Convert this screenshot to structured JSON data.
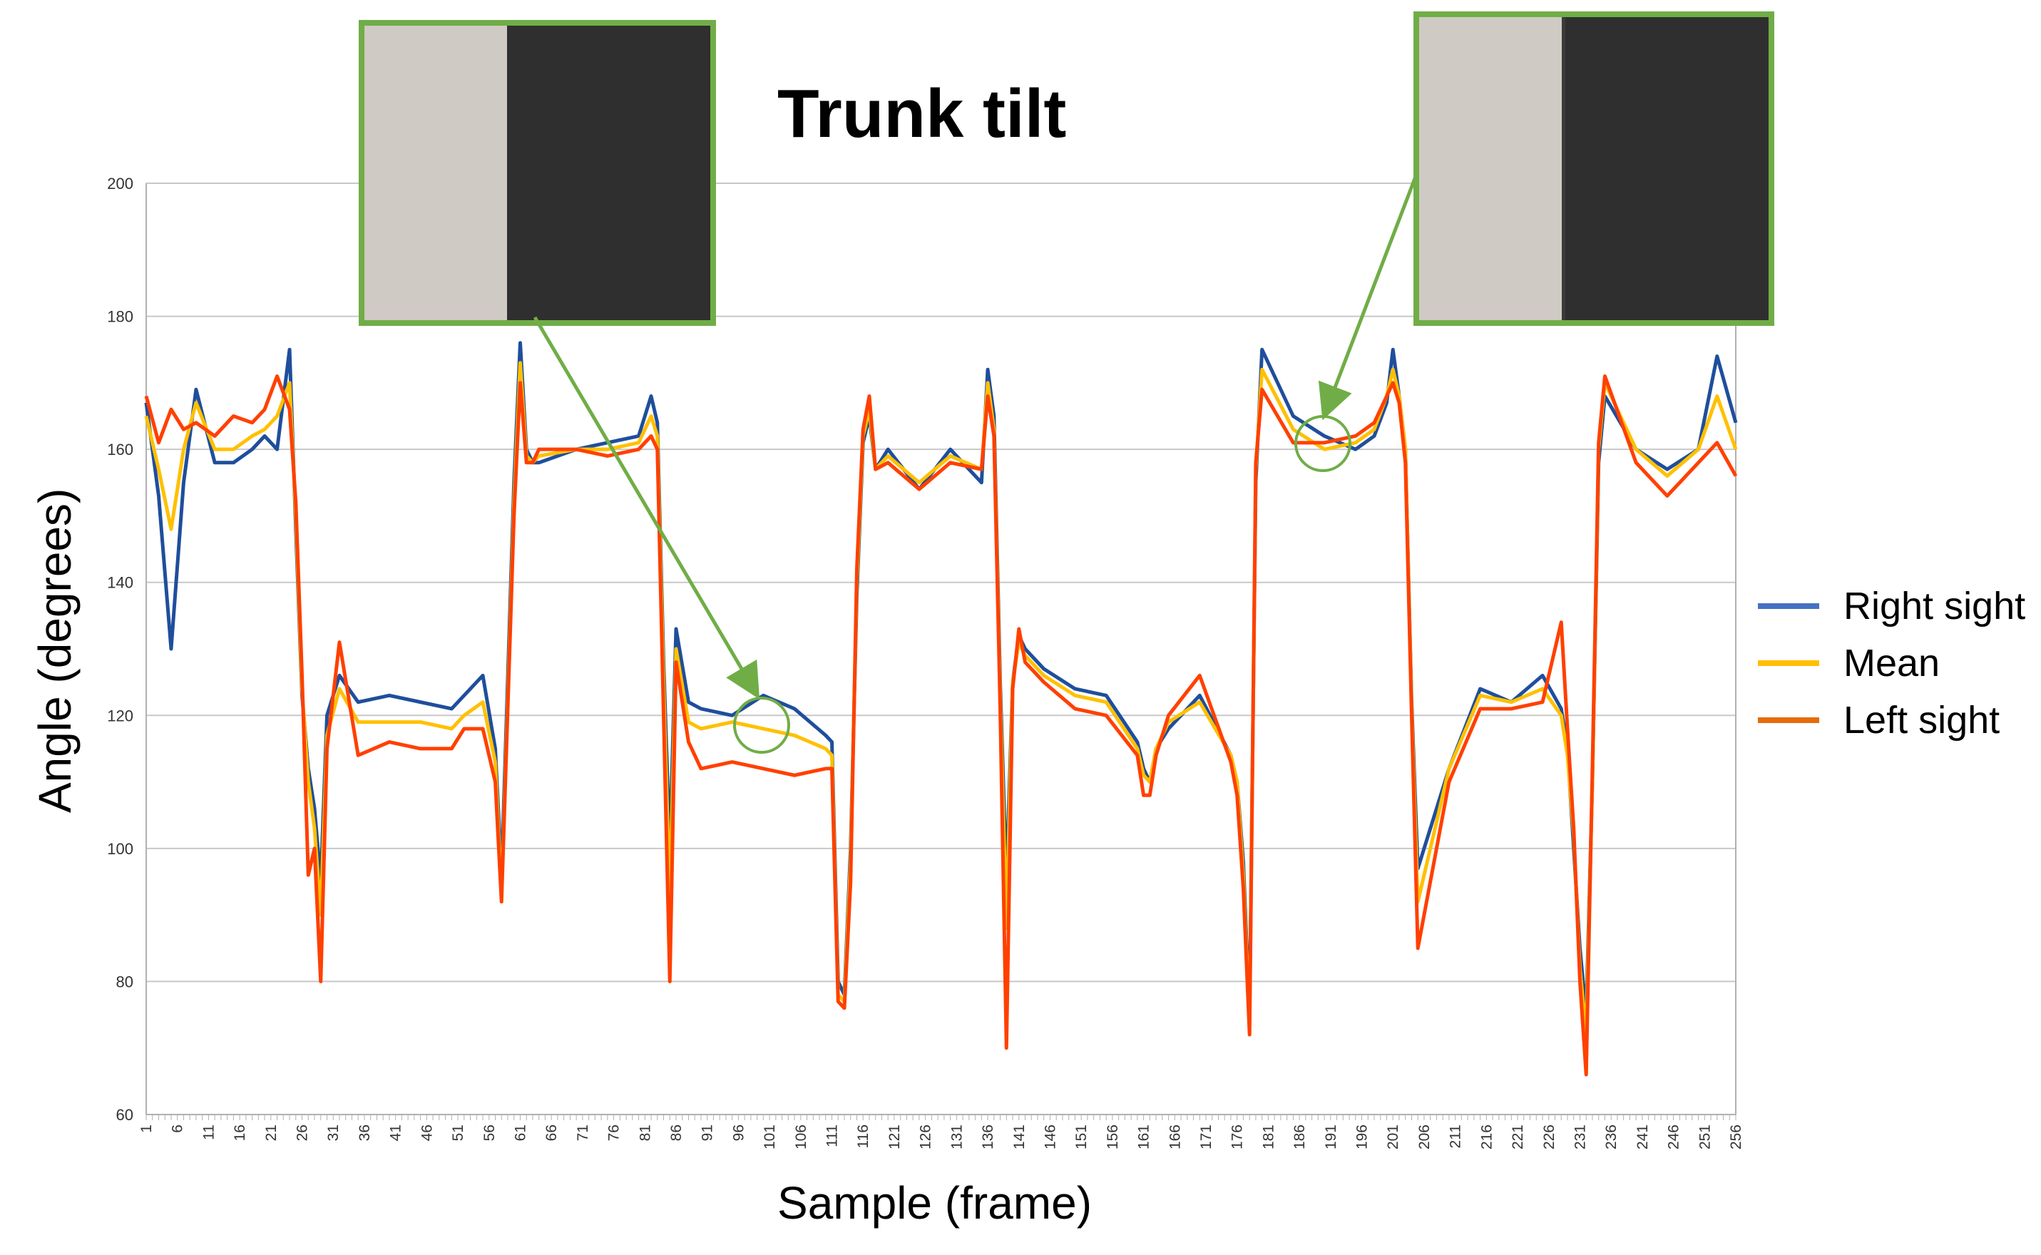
{
  "chart_data": {
    "type": "line",
    "title": "Trunk tilt",
    "xlabel": "Sample (frame)",
    "ylabel": "Angle (degrees)",
    "xlim": [
      1,
      256
    ],
    "ylim": [
      60,
      200
    ],
    "yticks": [
      60,
      80,
      100,
      120,
      140,
      160,
      180,
      200
    ],
    "xticks_start": 1,
    "xticks_step": 5,
    "xticks_end": 256,
    "grid": "horizontal",
    "legend_position": "right",
    "series": [
      {
        "name": "Right sight",
        "color": "#1f4e9c",
        "x": [
          1,
          3,
          5,
          7,
          9,
          12,
          15,
          18,
          20,
          22,
          24,
          25,
          26,
          27,
          28,
          29,
          30,
          32,
          35,
          40,
          45,
          50,
          52,
          55,
          57,
          58,
          60,
          61,
          62,
          63,
          64,
          70,
          75,
          80,
          82,
          83,
          84,
          85,
          86,
          88,
          90,
          95,
          100,
          105,
          110,
          111,
          112,
          113,
          114,
          115,
          116,
          117,
          118,
          120,
          125,
          130,
          135,
          136,
          137,
          138,
          139,
          140,
          141,
          142,
          145,
          150,
          155,
          160,
          161,
          162,
          163,
          165,
          170,
          175,
          176,
          177,
          178,
          179,
          180,
          185,
          190,
          195,
          198,
          200,
          201,
          202,
          203,
          204,
          205,
          210,
          215,
          220,
          225,
          228,
          229,
          230,
          231,
          232,
          233,
          234,
          235,
          240,
          245,
          250,
          253,
          256
        ],
        "y": [
          167,
          153,
          130,
          155,
          169,
          158,
          158,
          160,
          162,
          160,
          175,
          148,
          123,
          112,
          106,
          95,
          120,
          126,
          122,
          123,
          122,
          121,
          123,
          126,
          115,
          96,
          155,
          176,
          160,
          158,
          158,
          160,
          161,
          162,
          168,
          164,
          128,
          100,
          133,
          122,
          121,
          120,
          123,
          121,
          117,
          116,
          80,
          78,
          100,
          138,
          161,
          165,
          157,
          160,
          154,
          160,
          155,
          172,
          165,
          125,
          95,
          125,
          132,
          130,
          127,
          124,
          123,
          116,
          112,
          110,
          115,
          118,
          123,
          114,
          110,
          98,
          75,
          155,
          175,
          165,
          162,
          160,
          162,
          167,
          175,
          168,
          160,
          122,
          97,
          112,
          124,
          122,
          126,
          121,
          115,
          100,
          85,
          75,
          110,
          158,
          168,
          160,
          157,
          160,
          174,
          164
        ]
      },
      {
        "name": "Mean",
        "color": "#ffc000",
        "x": [
          1,
          3,
          5,
          7,
          9,
          12,
          15,
          18,
          20,
          22,
          24,
          25,
          26,
          27,
          28,
          29,
          30,
          32,
          35,
          40,
          45,
          50,
          52,
          55,
          57,
          58,
          60,
          61,
          62,
          63,
          64,
          70,
          75,
          80,
          82,
          83,
          84,
          85,
          86,
          88,
          90,
          95,
          100,
          105,
          110,
          111,
          112,
          113,
          114,
          115,
          116,
          117,
          118,
          120,
          125,
          130,
          135,
          136,
          137,
          138,
          139,
          140,
          141,
          142,
          145,
          150,
          155,
          160,
          161,
          162,
          163,
          165,
          170,
          175,
          176,
          177,
          178,
          179,
          180,
          185,
          190,
          195,
          198,
          200,
          201,
          202,
          203,
          204,
          205,
          210,
          215,
          220,
          225,
          228,
          229,
          230,
          231,
          232,
          233,
          234,
          235,
          240,
          245,
          250,
          253,
          256
        ],
        "y": [
          165,
          157,
          148,
          160,
          167,
          160,
          160,
          162,
          163,
          165,
          170,
          150,
          124,
          110,
          103,
          90,
          117,
          124,
          119,
          119,
          119,
          118,
          120,
          122,
          113,
          93,
          152,
          173,
          159,
          158,
          159,
          160,
          160,
          161,
          165,
          162,
          125,
          92,
          130,
          119,
          118,
          119,
          118,
          117,
          115,
          114,
          78,
          77,
          98,
          140,
          162,
          166,
          157,
          159,
          155,
          159,
          157,
          170,
          163,
          123,
          88,
          125,
          131,
          129,
          126,
          123,
          122,
          115,
          111,
          110,
          115,
          119,
          122,
          114,
          110,
          96,
          73,
          157,
          172,
          163,
          160,
          161,
          163,
          168,
          172,
          168,
          160,
          121,
          92,
          112,
          123,
          122,
          124,
          120,
          114,
          102,
          82,
          72,
          110,
          160,
          170,
          160,
          156,
          160,
          168,
          160
        ]
      },
      {
        "name": "Left sight",
        "color": "#ff4000",
        "x": [
          1,
          3,
          5,
          7,
          9,
          12,
          15,
          18,
          20,
          22,
          24,
          25,
          26,
          27,
          28,
          29,
          30,
          32,
          35,
          40,
          45,
          50,
          52,
          55,
          57,
          58,
          60,
          61,
          62,
          63,
          64,
          70,
          75,
          80,
          82,
          83,
          84,
          85,
          86,
          88,
          90,
          95,
          100,
          105,
          110,
          111,
          112,
          113,
          114,
          115,
          116,
          117,
          118,
          120,
          125,
          130,
          135,
          136,
          137,
          138,
          139,
          140,
          141,
          142,
          145,
          150,
          155,
          160,
          161,
          162,
          163,
          165,
          170,
          175,
          176,
          177,
          178,
          179,
          180,
          185,
          190,
          195,
          198,
          200,
          201,
          202,
          203,
          204,
          205,
          210,
          215,
          220,
          225,
          228,
          229,
          230,
          231,
          232,
          233,
          234,
          235,
          240,
          245,
          250,
          253,
          256
        ],
        "y": [
          168,
          161,
          166,
          163,
          164,
          162,
          165,
          164,
          166,
          171,
          166,
          152,
          126,
          96,
          100,
          80,
          115,
          131,
          114,
          116,
          115,
          115,
          118,
          118,
          110,
          92,
          150,
          170,
          158,
          158,
          160,
          160,
          159,
          160,
          162,
          160,
          120,
          80,
          128,
          116,
          112,
          113,
          112,
          111,
          112,
          112,
          77,
          76,
          95,
          142,
          163,
          168,
          157,
          158,
          154,
          158,
          157,
          168,
          162,
          121,
          70,
          124,
          133,
          128,
          125,
          121,
          120,
          114,
          108,
          108,
          114,
          120,
          126,
          113,
          108,
          94,
          72,
          158,
          169,
          161,
          161,
          162,
          164,
          168,
          170,
          167,
          158,
          120,
          85,
          110,
          121,
          121,
          122,
          134,
          118,
          103,
          80,
          66,
          112,
          161,
          171,
          158,
          153,
          158,
          161,
          156
        ]
      }
    ]
  }
}
